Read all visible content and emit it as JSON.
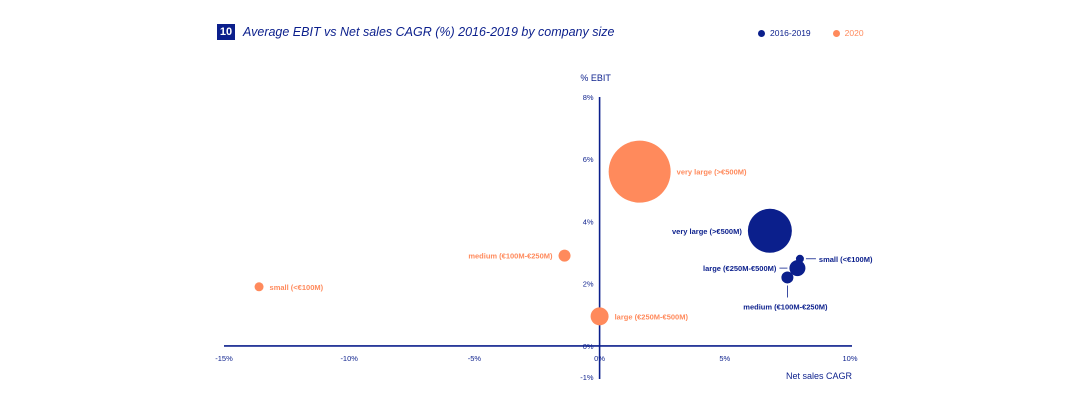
{
  "header": {
    "badge": "10",
    "title": "Average EBIT vs Net sales CAGR (%) 2016-2019 by company size"
  },
  "legend": [
    {
      "label": "2016-2019",
      "color": "#0b1f8c"
    },
    {
      "label": "2020",
      "color": "#ff8a5c"
    }
  ],
  "chart_data": {
    "type": "scatter",
    "title": "Average EBIT vs Net sales CAGR (%) 2016-2019 by company size",
    "xlabel": "Net sales CAGR",
    "ylabel": "% EBIT",
    "xlim": [
      -15,
      10
    ],
    "ylim": [
      -1,
      8
    ],
    "x_ticks": [
      {
        "value": -15,
        "label": "-15%"
      },
      {
        "value": -10,
        "label": "-10%"
      },
      {
        "value": -5,
        "label": "-5%"
      },
      {
        "value": 0,
        "label": "0%"
      },
      {
        "value": 5,
        "label": "5%"
      },
      {
        "value": 10,
        "label": "10%"
      }
    ],
    "y_ticks": [
      {
        "value": -1,
        "label": "-1%"
      },
      {
        "value": 0,
        "label": "0%"
      },
      {
        "value": 2,
        "label": "2%"
      },
      {
        "value": 4,
        "label": "4%"
      },
      {
        "value": 6,
        "label": "6%"
      },
      {
        "value": 8,
        "label": "8%"
      }
    ],
    "series": [
      {
        "name": "2016-2019",
        "color": "#0b1f8c",
        "points": [
          {
            "label": "very large (>€500M)",
            "x": 6.8,
            "y": 3.7,
            "size": 22,
            "label_pos": "left"
          },
          {
            "label": "small (<€100M)",
            "x": 8.0,
            "y": 2.8,
            "size": 4,
            "label_pos": "right-leader"
          },
          {
            "label": "large (€250M-€500M)",
            "x": 7.9,
            "y": 2.5,
            "size": 8,
            "label_pos": "left-leader"
          },
          {
            "label": "medium (€100M-€250M)",
            "x": 7.5,
            "y": 2.2,
            "size": 6,
            "label_pos": "below-leader"
          }
        ]
      },
      {
        "name": "2020",
        "color": "#ff8a5c",
        "points": [
          {
            "label": "very large (>€500M)",
            "x": 1.6,
            "y": 5.6,
            "size": 31,
            "label_pos": "right"
          },
          {
            "label": "medium (€100M-€250M)",
            "x": -1.4,
            "y": 2.9,
            "size": 6,
            "label_pos": "left"
          },
          {
            "label": "small (<€100M)",
            "x": -13.6,
            "y": 1.9,
            "size": 4.5,
            "label_pos": "right"
          },
          {
            "label": "large (€250M-€500M)",
            "x": 0.0,
            "y": 0.95,
            "size": 9,
            "label_pos": "right"
          }
        ]
      }
    ]
  }
}
